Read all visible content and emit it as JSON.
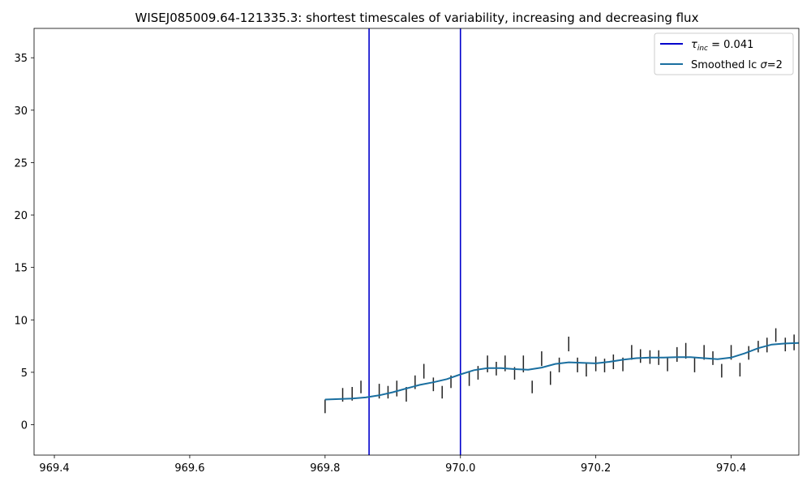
{
  "chart_data": {
    "type": "line",
    "title": "WISEJ085009.64-121335.3: shortest timescales of variability, increasing and decreasing flux",
    "xlabel": "",
    "ylabel": "",
    "xlim": [
      969.37,
      970.5
    ],
    "ylim": [
      -2.9,
      37.8
    ],
    "xticks": [
      969.4,
      969.6,
      969.8,
      970.0,
      970.2,
      970.4
    ],
    "xtick_labels": [
      "969.4",
      "969.6",
      "969.8",
      "970.0",
      "970.2",
      "970.4"
    ],
    "yticks": [
      0,
      5,
      10,
      15,
      20,
      25,
      30,
      35
    ],
    "ytick_labels": [
      "0",
      "5",
      "10",
      "15",
      "20",
      "25",
      "30",
      "35"
    ],
    "grid": false,
    "legend_position": "top-right",
    "vertical_lines": {
      "name": "τ_inc = 0.041",
      "legend_main": "τ",
      "legend_sub": "inc",
      "legend_rest": " = 0.041",
      "color": "#0000cc",
      "x": [
        969.865,
        970.0
      ]
    },
    "smoothed": {
      "name": "Smoothed lc σ=2",
      "legend_text_a": "Smoothed lc ",
      "legend_sigma": "σ",
      "legend_text_b": "=2",
      "color": "#1a6fa0",
      "x": [
        969.8,
        969.82,
        969.84,
        969.86,
        969.88,
        969.9,
        969.92,
        969.94,
        969.96,
        969.98,
        970.0,
        970.02,
        970.04,
        970.06,
        970.08,
        970.1,
        970.12,
        970.14,
        970.16,
        970.18,
        970.2,
        970.22,
        970.24,
        970.26,
        970.28,
        970.3,
        970.32,
        970.34,
        970.36,
        970.38,
        970.4,
        970.42,
        970.44,
        970.46,
        970.48,
        970.5
      ],
      "y": [
        2.4,
        2.45,
        2.5,
        2.6,
        2.8,
        3.1,
        3.45,
        3.8,
        4.05,
        4.35,
        4.8,
        5.2,
        5.4,
        5.4,
        5.3,
        5.25,
        5.45,
        5.8,
        5.95,
        5.9,
        5.85,
        6.0,
        6.2,
        6.35,
        6.4,
        6.4,
        6.45,
        6.45,
        6.35,
        6.25,
        6.4,
        6.8,
        7.3,
        7.65,
        7.75,
        7.8
      ]
    },
    "error_bars": {
      "color": "#222222",
      "x": [
        969.8,
        969.826,
        969.84,
        969.853,
        969.88,
        969.893,
        969.906,
        969.92,
        969.933,
        969.946,
        969.96,
        969.973,
        969.986,
        970.013,
        970.026,
        970.04,
        970.053,
        970.066,
        970.08,
        970.093,
        970.106,
        970.12,
        970.133,
        970.146,
        970.16,
        970.173,
        970.186,
        970.2,
        970.213,
        970.226,
        970.24,
        970.253,
        970.266,
        970.28,
        970.293,
        970.306,
        970.32,
        970.333,
        970.346,
        970.36,
        970.373,
        970.386,
        970.4,
        970.413,
        970.426,
        970.44,
        970.453,
        970.466,
        970.48,
        970.493
      ],
      "lo": [
        1.1,
        2.2,
        2.3,
        3.0,
        2.5,
        2.5,
        2.7,
        2.2,
        3.4,
        4.4,
        3.2,
        2.5,
        3.5,
        3.7,
        4.3,
        5.0,
        4.7,
        5.1,
        4.3,
        5.0,
        3.0,
        5.6,
        3.8,
        5.0,
        7.0,
        5.0,
        4.6,
        5.1,
        5.0,
        5.3,
        5.1,
        6.2,
        5.9,
        5.8,
        5.7,
        5.1,
        6.0,
        6.3,
        5.0,
        6.2,
        5.7,
        4.5,
        6.2,
        4.6,
        6.2,
        6.9,
        6.9,
        7.9,
        7.0,
        7.1
      ],
      "hi": [
        2.4,
        3.5,
        3.6,
        4.2,
        3.9,
        3.7,
        4.2,
        3.6,
        4.7,
        5.8,
        4.5,
        3.7,
        4.7,
        5.0,
        5.6,
        6.6,
        6.0,
        6.6,
        5.5,
        6.6,
        4.2,
        7.0,
        5.1,
        6.4,
        8.4,
        6.4,
        5.9,
        6.5,
        6.3,
        6.7,
        6.4,
        7.6,
        7.2,
        7.1,
        7.1,
        6.4,
        7.4,
        7.8,
        6.4,
        7.6,
        7.0,
        5.8,
        7.6,
        5.9,
        7.5,
        8.0,
        8.3,
        9.2,
        8.3,
        8.6
      ]
    }
  }
}
